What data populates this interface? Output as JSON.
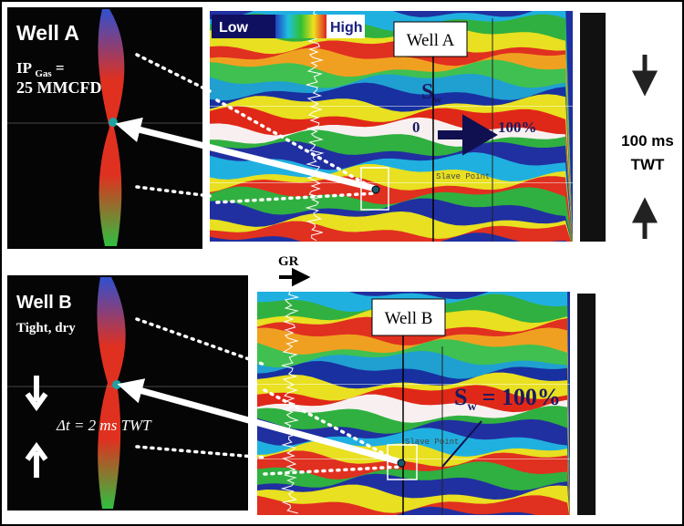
{
  "panel_a": {
    "well_title": "Well A",
    "ip_prefix": "IP",
    "ip_subscript": "Gas",
    "ip_suffix": "=",
    "ip_rate": "25 MMCFD"
  },
  "legend": {
    "low": "Low",
    "high": "High"
  },
  "seismic_a": {
    "well_label": "Well A",
    "sw_symbol": "S",
    "sw_subscript": "w",
    "sw_min": "0",
    "sw_max": "100%",
    "horizon": "Slave Point"
  },
  "scale": {
    "interval": "100 ms",
    "unit": "TWT"
  },
  "gr_label": "GR",
  "panel_b": {
    "well_title": "Well B",
    "status": "Tight, dry",
    "dt_label": "Δt = 2 ms TWT"
  },
  "seismic_b": {
    "well_label": "Well B",
    "sw_symbol": "S",
    "sw_subscript": "w",
    "sw_text": "= 100%",
    "horizon": "Slave Point"
  }
}
